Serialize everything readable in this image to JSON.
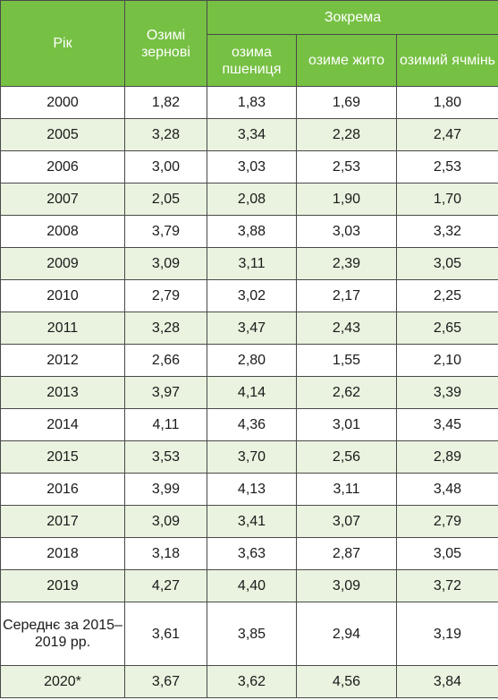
{
  "header": {
    "year": "Рік",
    "winter_grains": "Озимі зернові",
    "including": "Зокрема",
    "wheat": "озима пшениця",
    "rye": "озиме жито",
    "barley": "озимий ячмінь"
  },
  "rows": [
    {
      "year": "2000",
      "grains": "1,82",
      "wheat": "1,83",
      "rye": "1,69",
      "barley": "1,80"
    },
    {
      "year": "2005",
      "grains": "3,28",
      "wheat": "3,34",
      "rye": "2,28",
      "barley": "2,47"
    },
    {
      "year": "2006",
      "grains": "3,00",
      "wheat": "3,03",
      "rye": "2,53",
      "barley": "2,53"
    },
    {
      "year": "2007",
      "grains": "2,05",
      "wheat": "2,08",
      "rye": "1,90",
      "barley": "1,70"
    },
    {
      "year": "2008",
      "grains": "3,79",
      "wheat": "3,88",
      "rye": "3,03",
      "barley": "3,32"
    },
    {
      "year": "2009",
      "grains": "3,09",
      "wheat": "3,11",
      "rye": "2,39",
      "barley": "3,05"
    },
    {
      "year": "2010",
      "grains": "2,79",
      "wheat": "3,02",
      "rye": "2,17",
      "barley": "2,25"
    },
    {
      "year": "2011",
      "grains": "3,28",
      "wheat": "3,47",
      "rye": "2,43",
      "barley": "2,65"
    },
    {
      "year": "2012",
      "grains": "2,66",
      "wheat": "2,80",
      "rye": "1,55",
      "barley": "2,10"
    },
    {
      "year": "2013",
      "grains": "3,97",
      "wheat": "4,14",
      "rye": "2,62",
      "barley": "3,39"
    },
    {
      "year": "2014",
      "grains": "4,11",
      "wheat": "4,36",
      "rye": "3,01",
      "barley": "3,45"
    },
    {
      "year": "2015",
      "grains": "3,53",
      "wheat": "3,70",
      "rye": "2,56",
      "barley": "2,89"
    },
    {
      "year": "2016",
      "grains": "3,99",
      "wheat": "4,13",
      "rye": "3,11",
      "barley": "3,48"
    },
    {
      "year": "2017",
      "grains": "3,09",
      "wheat": "3,41",
      "rye": "3,07",
      "barley": "2,79"
    },
    {
      "year": "2018",
      "grains": "3,18",
      "wheat": "3,63",
      "rye": "2,87",
      "barley": "3,05"
    },
    {
      "year": "2019",
      "grains": "4,27",
      "wheat": "4,40",
      "rye": "3,09",
      "barley": "3,72"
    },
    {
      "year": "Середнє за 2015–2019 рр.",
      "grains": "3,61",
      "wheat": "3,85",
      "rye": "2,94",
      "barley": "3,19"
    },
    {
      "year": "2020*",
      "grains": "3,67",
      "wheat": "3,62",
      "rye": "4,56",
      "barley": "3,84"
    }
  ],
  "colors": {
    "header_bg": "#76c043",
    "stripe_bg": "#e9f3df",
    "border": "#4a4a4a"
  }
}
